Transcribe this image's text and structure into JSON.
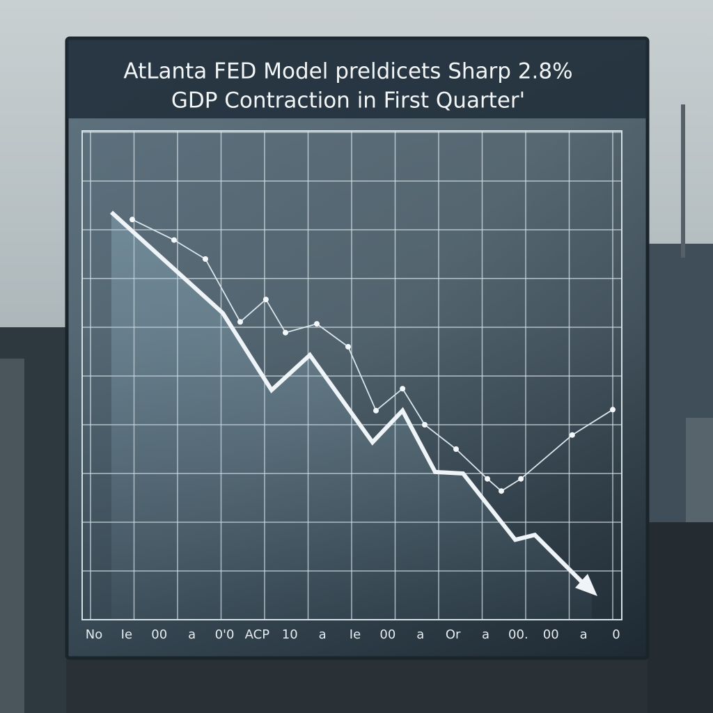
{
  "chart_data": {
    "type": "line",
    "title": [
      "AtLanta FED Model preldicets Sharp 2.8%",
      "GDP Contraction in First Quarter'"
    ],
    "x_labels": [
      "No",
      "Ie",
      "00",
      "a",
      "0'0",
      "ACP",
      "10",
      "a",
      "Ie",
      "00",
      "a",
      "Or",
      "a",
      "00.",
      "00",
      "a",
      "0"
    ],
    "xlim": [
      0,
      12
    ],
    "xticks": [
      0,
      1,
      2,
      3,
      4,
      5,
      6,
      7,
      8,
      9,
      10,
      11,
      12
    ],
    "ylim": [
      0,
      10
    ],
    "yticks": [
      0,
      1,
      2,
      3,
      4,
      5,
      6,
      7,
      8,
      9,
      10
    ],
    "grid": true,
    "series": [
      {
        "color": "#eef4f7",
        "x": [
          0.48,
          3.04,
          4.16,
          5.04,
          6.48,
          7.17,
          7.92,
          8.56,
          9.76,
          10.21,
          11.52
        ],
        "values": [
          8.36,
          6.29,
          4.71,
          5.43,
          3.64,
          4.29,
          3.03,
          3.0,
          1.64,
          1.74,
          0.57
        ]
      },
      {
        "color": "#dbe6ec",
        "x": [
          0.96,
          1.92,
          2.64,
          3.44,
          4.03,
          4.48,
          5.2,
          5.92,
          6.56,
          7.17,
          7.68,
          8.4,
          9.12,
          9.44,
          9.89,
          11.07,
          12
        ],
        "values": [
          8.21,
          7.79,
          7.4,
          6.11,
          6.57,
          5.89,
          6.07,
          5.6,
          4.29,
          4.74,
          4.0,
          3.5,
          2.89,
          2.64,
          2.89,
          3.79,
          4.31
        ]
      }
    ]
  }
}
